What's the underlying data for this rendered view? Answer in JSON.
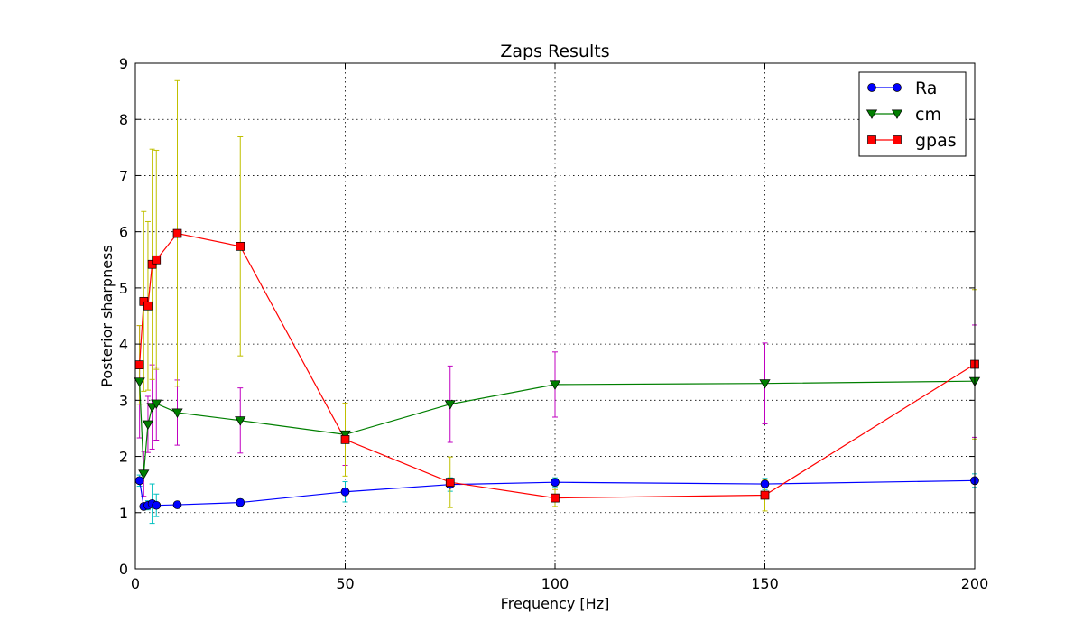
{
  "chart_data": {
    "type": "line",
    "title": "Zaps Results",
    "xlabel": "Frequency [Hz]",
    "ylabel": "Posterior sharpness",
    "xlim": [
      0,
      200
    ],
    "ylim": [
      0,
      9
    ],
    "xticks": [
      0,
      50,
      100,
      150,
      200
    ],
    "yticks": [
      0,
      1,
      2,
      3,
      4,
      5,
      6,
      7,
      8,
      9
    ],
    "grid": true,
    "legend_position": "top-right",
    "x": [
      1,
      2,
      3,
      4,
      5,
      10,
      25,
      50,
      75,
      100,
      150,
      200
    ],
    "series": [
      {
        "name": "Ra",
        "color": "#0000ff",
        "error_color": "#00c0c0",
        "marker": "circle",
        "values": [
          1.57,
          1.11,
          1.13,
          1.16,
          1.13,
          1.14,
          1.18,
          1.37,
          1.5,
          1.54,
          1.51,
          1.57
        ],
        "errors": [
          0.1,
          0.05,
          0.08,
          0.35,
          0.2,
          0.05,
          0.06,
          0.18,
          0.12,
          0.08,
          0.1,
          0.12
        ]
      },
      {
        "name": "cm",
        "color": "#007f00",
        "error_color": "#c000c0",
        "marker": "triangle-down",
        "values": [
          3.33,
          1.69,
          2.57,
          2.88,
          2.94,
          2.78,
          2.64,
          2.39,
          2.93,
          3.28,
          3.3,
          3.34
        ],
        "errors": [
          1.0,
          0.4,
          0.5,
          0.75,
          0.65,
          0.58,
          0.58,
          0.55,
          0.68,
          0.58,
          0.72,
          1.0
        ]
      },
      {
        "name": "gpas",
        "color": "#ff0000",
        "error_color": "#c0c000",
        "marker": "square",
        "values": [
          3.63,
          4.76,
          4.68,
          5.42,
          5.5,
          5.97,
          5.74,
          2.3,
          1.54,
          1.26,
          1.31,
          3.64
        ],
        "errors": [
          0.7,
          1.6,
          1.5,
          2.05,
          1.95,
          2.72,
          1.95,
          0.65,
          0.45,
          0.15,
          0.28,
          1.33
        ]
      }
    ]
  }
}
